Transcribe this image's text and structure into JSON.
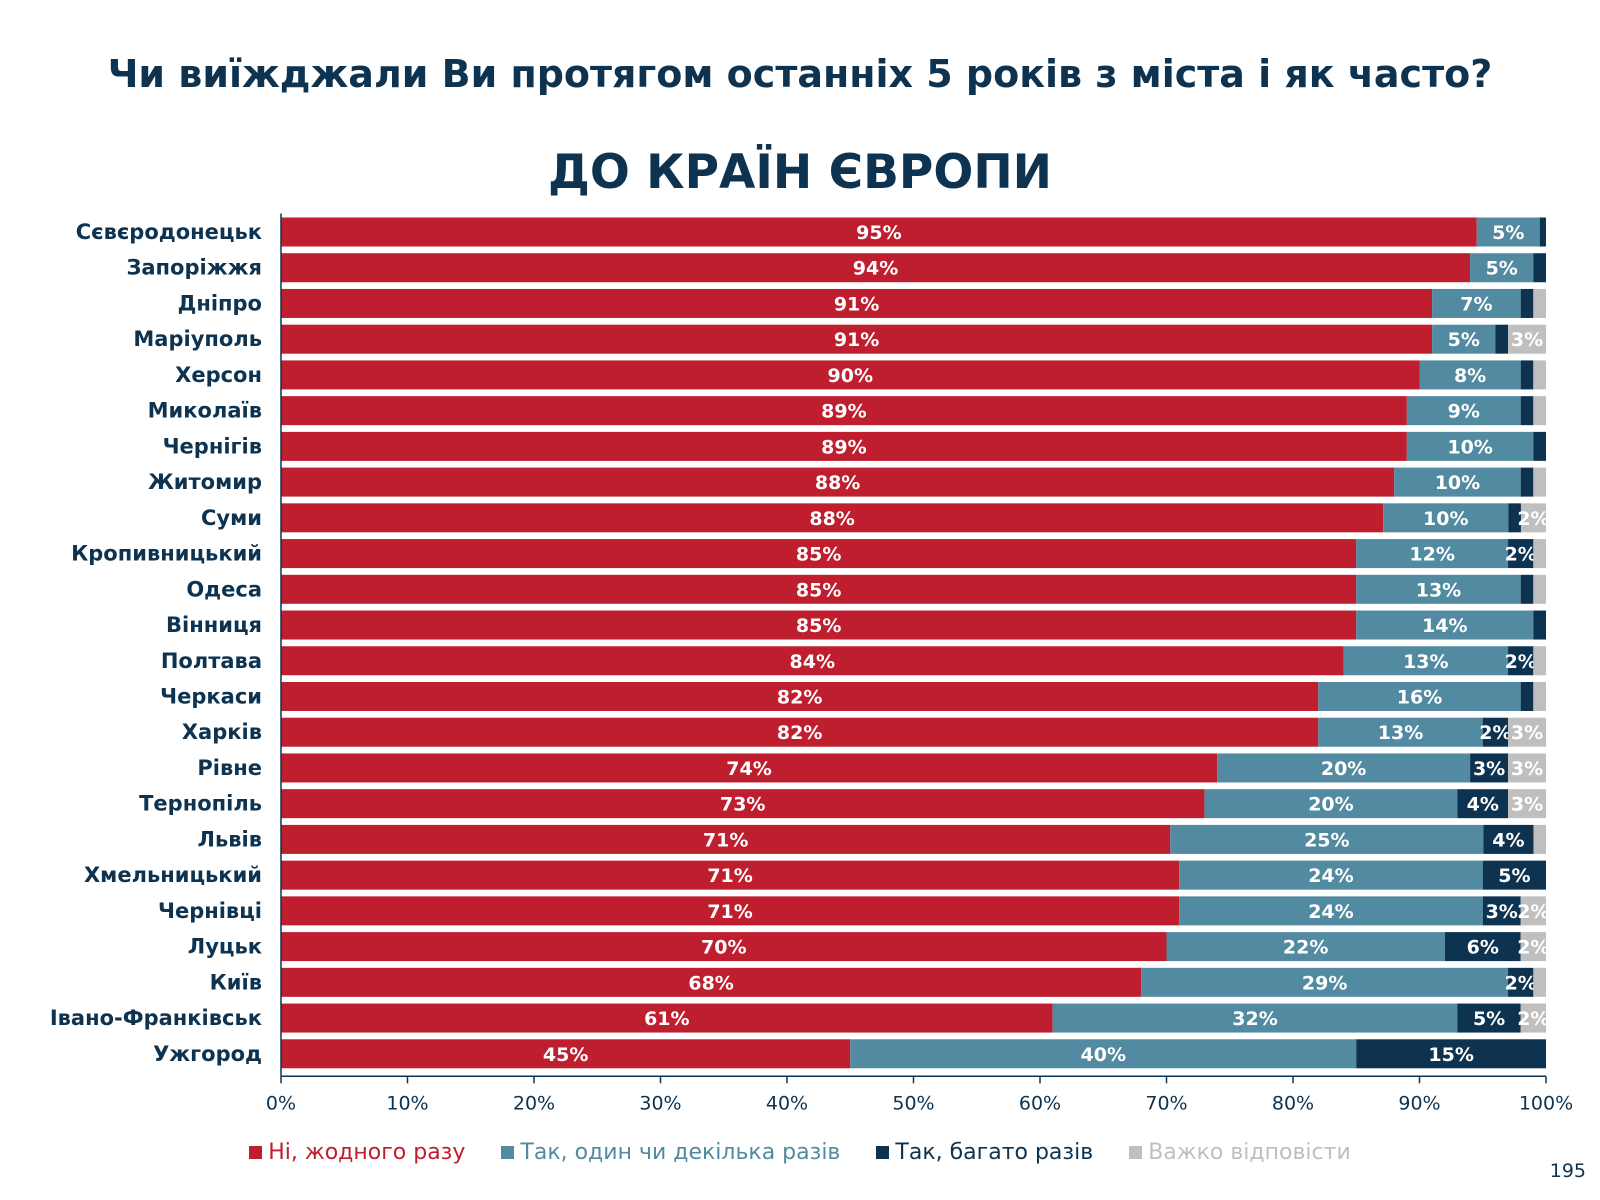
{
  "header": {
    "title": "Чи виїжджали Ви протягом останніх 5 років з міста і як часто?"
  },
  "page_number": "195",
  "chart_data": {
    "type": "bar",
    "orientation": "horizontal",
    "stacked": true,
    "title": "ДО КРАЇН ЄВРОПИ",
    "xlabel": "",
    "ylabel": "",
    "xlim": [
      0,
      100
    ],
    "x_ticks": [
      "0%",
      "10%",
      "20%",
      "30%",
      "40%",
      "50%",
      "60%",
      "70%",
      "80%",
      "90%",
      "100%"
    ],
    "legend_position": "bottom",
    "grid": false,
    "categories": [
      "Сєвєродонецьк",
      "Запоріжжя",
      "Дніпро",
      "Маріуполь",
      "Херсон",
      "Миколаїв",
      "Чернігів",
      "Житомир",
      "Суми",
      "Кропивницький",
      "Одеса",
      "Вінниця",
      "Полтава",
      "Черкаси",
      "Харків",
      "Рівне",
      "Тернопіль",
      "Львів",
      "Хмельницький",
      "Чернівці",
      "Луцьк",
      "Київ",
      "Івано-Франківськ",
      "Ужгород"
    ],
    "series": [
      {
        "name": "Ні, жодного разу",
        "color": "#bf1e2e",
        "values": [
          95,
          94,
          91,
          91,
          90,
          89,
          89,
          88,
          88,
          85,
          85,
          85,
          84,
          82,
          82,
          74,
          73,
          71,
          71,
          71,
          70,
          68,
          61,
          45
        ]
      },
      {
        "name": "Так, один чи декілька разів",
        "color": "#528ba1",
        "values": [
          5,
          5,
          7,
          5,
          8,
          9,
          10,
          10,
          10,
          12,
          13,
          14,
          13,
          16,
          13,
          20,
          20,
          25,
          24,
          24,
          22,
          29,
          32,
          40
        ]
      },
      {
        "name": "Так, багато разів",
        "color": "#0d3350",
        "values": [
          0.5,
          1,
          1,
          1,
          1,
          1,
          1,
          1,
          1,
          2,
          1,
          1,
          2,
          1,
          2,
          3,
          4,
          4,
          5,
          3,
          6,
          2,
          5,
          15
        ]
      },
      {
        "name": "Важко відповісти",
        "color": "#bfbfbf",
        "values": [
          0,
          0,
          1,
          3,
          1,
          1,
          0,
          1,
          2,
          1,
          1,
          0,
          1,
          1,
          3,
          3,
          3,
          1,
          0,
          2,
          2,
          1,
          2,
          0
        ]
      }
    ]
  }
}
